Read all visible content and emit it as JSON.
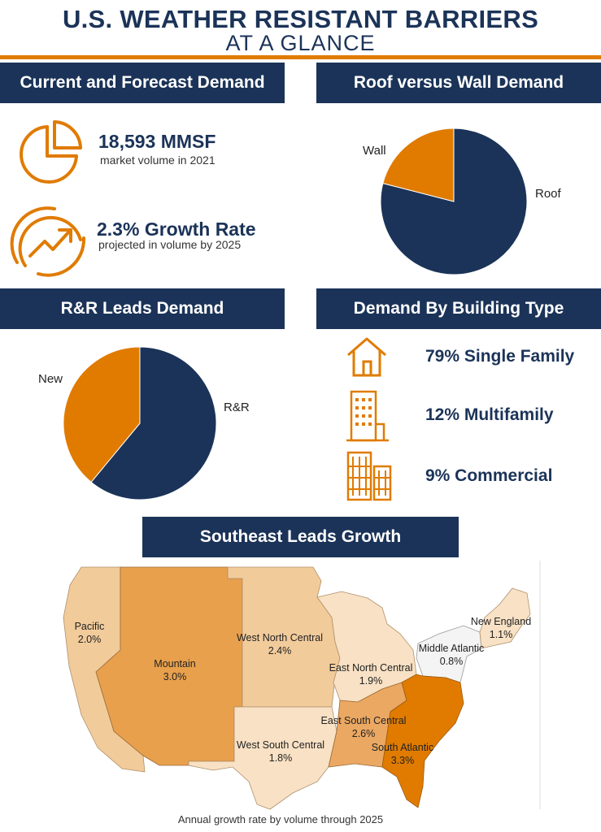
{
  "header": {
    "title": "U.S. WEATHER RESISTANT BARRIERS",
    "subtitle": "AT A GLANCE"
  },
  "sections": {
    "demand": "Current and Forecast Demand",
    "roof_wall": "Roof versus Wall Demand",
    "rr": "R&R Leads Demand",
    "building": "Demand By Building Type",
    "southeast": "Southeast Leads Growth"
  },
  "demand": {
    "volume": "18,593 MMSF",
    "volume_desc": "market volume in 2021",
    "growth": "2.3% Growth Rate",
    "growth_desc": "projected in volume by 2025"
  },
  "building_types": [
    {
      "label": "79% Single Family",
      "icon": "house-icon"
    },
    {
      "label": "12% Multifamily",
      "icon": "apartment-building-icon"
    },
    {
      "label": "9% Commercial",
      "icon": "commercial-building-icon"
    }
  ],
  "colors": {
    "navy": "#1b3358",
    "orange": "#e07b00"
  },
  "chart_data": [
    {
      "type": "pie",
      "title": "Roof versus Wall Demand",
      "labels": [
        "Roof",
        "Wall"
      ],
      "values": [
        79,
        21
      ],
      "colors": [
        "#1b3358",
        "#e07b00"
      ]
    },
    {
      "type": "pie",
      "title": "R&R Leads Demand",
      "labels": [
        "R&R",
        "New"
      ],
      "values": [
        61,
        39
      ],
      "colors": [
        "#1b3358",
        "#e07b00"
      ]
    },
    {
      "type": "map",
      "title": "Southeast Leads Growth",
      "caption": "Annual growth rate by volume through 2025",
      "regions": [
        {
          "name": "Pacific",
          "value": "2.0%"
        },
        {
          "name": "Mountain",
          "value": "3.0%"
        },
        {
          "name": "West North Central",
          "value": "2.4%"
        },
        {
          "name": "East North Central",
          "value": "1.9%"
        },
        {
          "name": "Middle Atlantic",
          "value": "0.8%"
        },
        {
          "name": "New England",
          "value": "1.1%"
        },
        {
          "name": "West South Central",
          "value": "1.8%"
        },
        {
          "name": "East South Central",
          "value": "2.6%"
        },
        {
          "name": "South Atlantic",
          "value": "3.3%"
        }
      ]
    }
  ]
}
